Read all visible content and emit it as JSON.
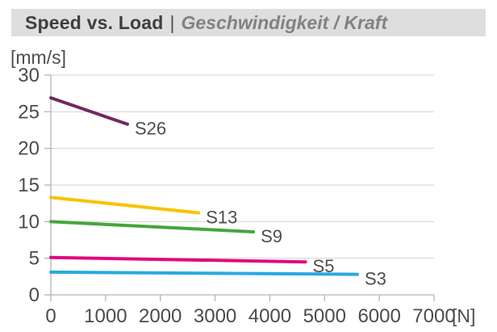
{
  "header": {
    "title": "Speed vs. Load",
    "separator": "|",
    "subtitle": "Geschwindigkeit / Kraft"
  },
  "chart_data": {
    "type": "line",
    "title": "Speed vs. Load | Geschwindigkeit / Kraft",
    "ylabel": "[mm/s]",
    "xlabel": "[N]",
    "xlim": [
      0,
      7000
    ],
    "ylim": [
      0,
      30
    ],
    "x_ticks": [
      0,
      1000,
      2000,
      3000,
      4000,
      5000,
      6000,
      7000
    ],
    "y_ticks": [
      0,
      5,
      10,
      15,
      20,
      25,
      30
    ],
    "grid": "horizontal",
    "legend_position": "inline-right-of-line-end",
    "series": [
      {
        "name": "S26",
        "color": "#712a60",
        "points": [
          [
            0,
            26.9
          ],
          [
            1400,
            23.3
          ]
        ]
      },
      {
        "name": "S13",
        "color": "#f8c300",
        "points": [
          [
            0,
            13.3
          ],
          [
            2700,
            11.2
          ]
        ]
      },
      {
        "name": "S9",
        "color": "#46a53c",
        "points": [
          [
            0,
            10.0
          ],
          [
            3700,
            8.6
          ]
        ]
      },
      {
        "name": "S5",
        "color": "#e0097f",
        "points": [
          [
            0,
            5.1
          ],
          [
            4650,
            4.5
          ]
        ]
      },
      {
        "name": "S3",
        "color": "#29a9e0",
        "points": [
          [
            0,
            3.1
          ],
          [
            5600,
            2.8
          ]
        ]
      }
    ]
  },
  "colors": {
    "header_bg": "#dedede",
    "title_text": "#3f3f3f",
    "subtitle_text": "#828282",
    "grid": "#d4d4d4",
    "axis": "#b4b4b4",
    "tick_text": "#4b4b4b",
    "series_label_text": "#4d4d4d",
    "background": "#ffffff"
  }
}
